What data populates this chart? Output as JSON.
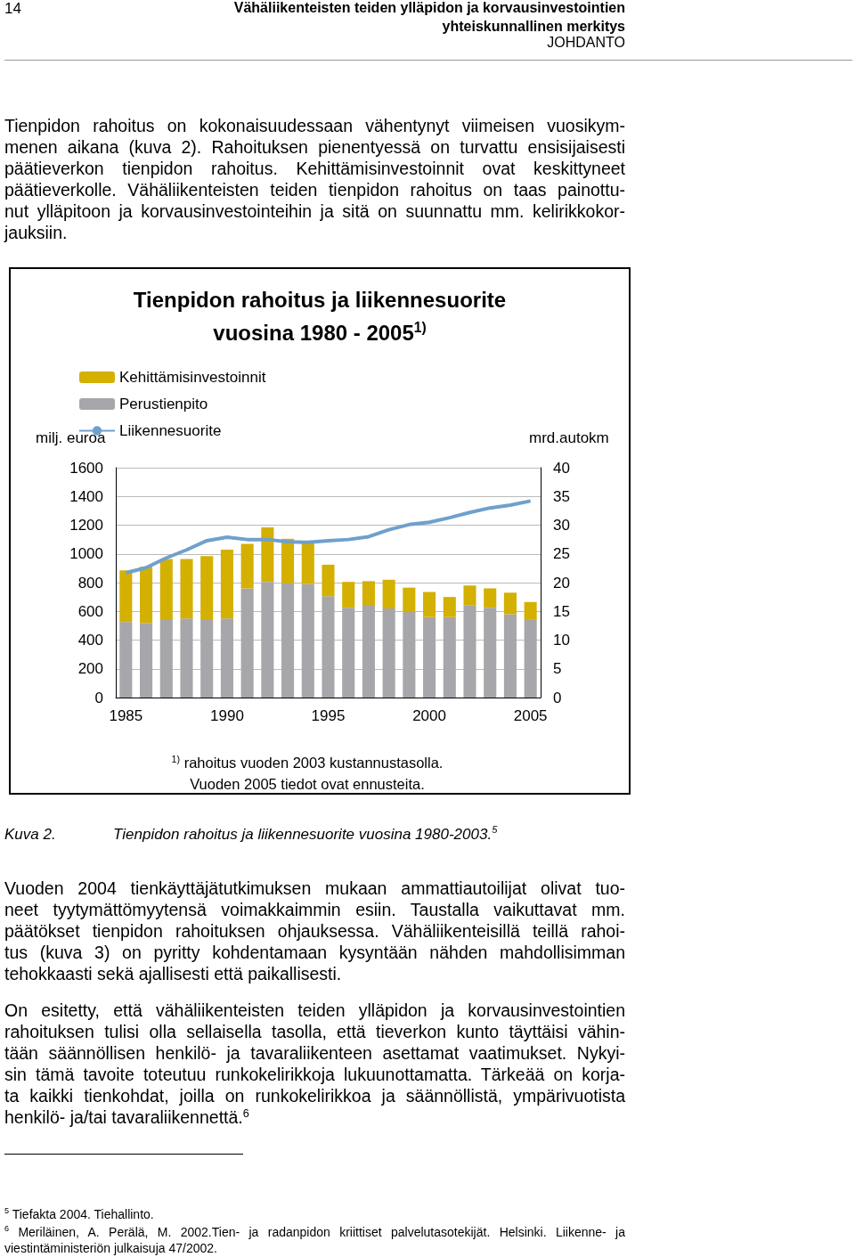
{
  "chart_data": {
    "type": "bar",
    "title": "Tienpidon rahoitus ja liikennesuorite\nvuosina 1980 - 2005$^{1)}$",
    "ylabel": "milj. euroa",
    "y2label": "mrd.autokm",
    "categories": [
      "1985",
      null,
      null,
      null,
      null,
      "1990",
      null,
      null,
      null,
      null,
      "1995",
      null,
      null,
      null,
      null,
      "2000",
      null,
      null,
      null,
      null,
      "2005"
    ],
    "series": [
      {
        "name": "Perustienpito",
        "color": "#a6a6ab",
        "values": [
          525,
          520,
          545,
          550,
          545,
          550,
          760,
          805,
          795,
          790,
          705,
          625,
          645,
          620,
          595,
          560,
          560,
          640,
          625,
          580,
          540
        ]
      },
      {
        "name": "Kehittämisinvestoinnit",
        "color": "#d4b000",
        "values": [
          360,
          390,
          420,
          415,
          440,
          480,
          310,
          380,
          310,
          295,
          220,
          180,
          165,
          200,
          170,
          175,
          140,
          140,
          135,
          150,
          125
        ]
      },
      {
        "name": "Liikennesuorite",
        "type": "line",
        "axis": "y2",
        "color": "#6fa0cc",
        "values": [
          21.7,
          22.6,
          24.3,
          25.7,
          27.3,
          27.9,
          27.5,
          27.5,
          27.1,
          27.0,
          27.3,
          27.5,
          28.0,
          29.2,
          30.1,
          30.5,
          31.3,
          32.2,
          33.0,
          33.5,
          34.2
        ]
      }
    ],
    "stacked": true,
    "ylim": [
      0,
      1600
    ],
    "yticks": [
      0,
      200,
      400,
      600,
      800,
      1000,
      1200,
      1400,
      1600
    ],
    "y2lim": [
      0,
      40
    ],
    "y2ticks": [
      0,
      5,
      10,
      15,
      20,
      25,
      30,
      35,
      40
    ],
    "grid": "y",
    "legend": "top left",
    "marker": "none",
    "annotations": [
      "14",
      "Vähäliikenteisten teiden ylläpidon ja korvausinvestointien\nyhteiskunnallinen merkitys",
      "JOHDANTO",
      "Tienpidon rahoitus on kokonaisuudessaan vähentynyt viimeisen vuosikym-\nmenen aikana (kuva 2). Rahoituksen pienentyessä on turvattu ensisijaisesti\npäätieverkon tienpidon rahoitus. Kehittämisinvestoinnit ovat keskittyneet\npäätieverkolle. Vähäliikenteisten teiden tienpidon rahoitus on taas painottu-\nnut ylläpitoon ja korvausinvestointeihin ja sitä on suunnattu mm. kelirikkokor-\njauksiin.",
      "$^{1)}$ rahoitus vuoden 2003 kustannustasolla.\nVuoden 2005 tiedot ovat ennusteita.",
      "Kuva 2.\tTienpidon rahoitus ja liikennesuorite vuosina 1980-2003.$^{5}$",
      "Vuoden 2004 tienkäyttäjätutkimuksen mukaan ammattiautoilijat olivat tuo-\nneet tyytymättömyytensä voimakkaimmin esiin. Taustalla vaikuttavat mm.\npäätökset tienpidon rahoituksen ohjauksessa. Vähäliikenteisillä teillä rahoi-\ntus (kuva 3) on pyritty kohdentamaan kysyntään nähden mahdollisimman\ntehokkaasti sekä ajallisesti että paikallisesti.",
      "On esitetty, että vähäliikenteisten teiden ylläpidon ja korvausinvestointien\nrahoituksen tulisi olla sellaisella tasolla, että tieverkon kunto täyttäisi vähin-\ntään säännöllisen henkilö- ja tavaraliikenteen asettamat vaatimukset. Nykyi-\nsin tämä tavoite toteutuu runkokelirikkoja lukuunottamatta. Tärkeää on korja-\nta kaikki tienkohdat, joilla on runkokelirikkoa ja säännöllistä, ympärivuotista\nhenkilö- ja/tai tavaraliikennettä.$^{6}$",
      "$^{5}$ Tiefakta 2004. Tiehallinto.",
      "$^{6}$ Meriläinen, A. Perälä, M. 2002.Tien- ja radanpidon kriittiset palvelutasotekijät. Helsinki. Liikenne- ja\nviestintäministeriön julkaisuja 47/2002."
    ]
  }
}
